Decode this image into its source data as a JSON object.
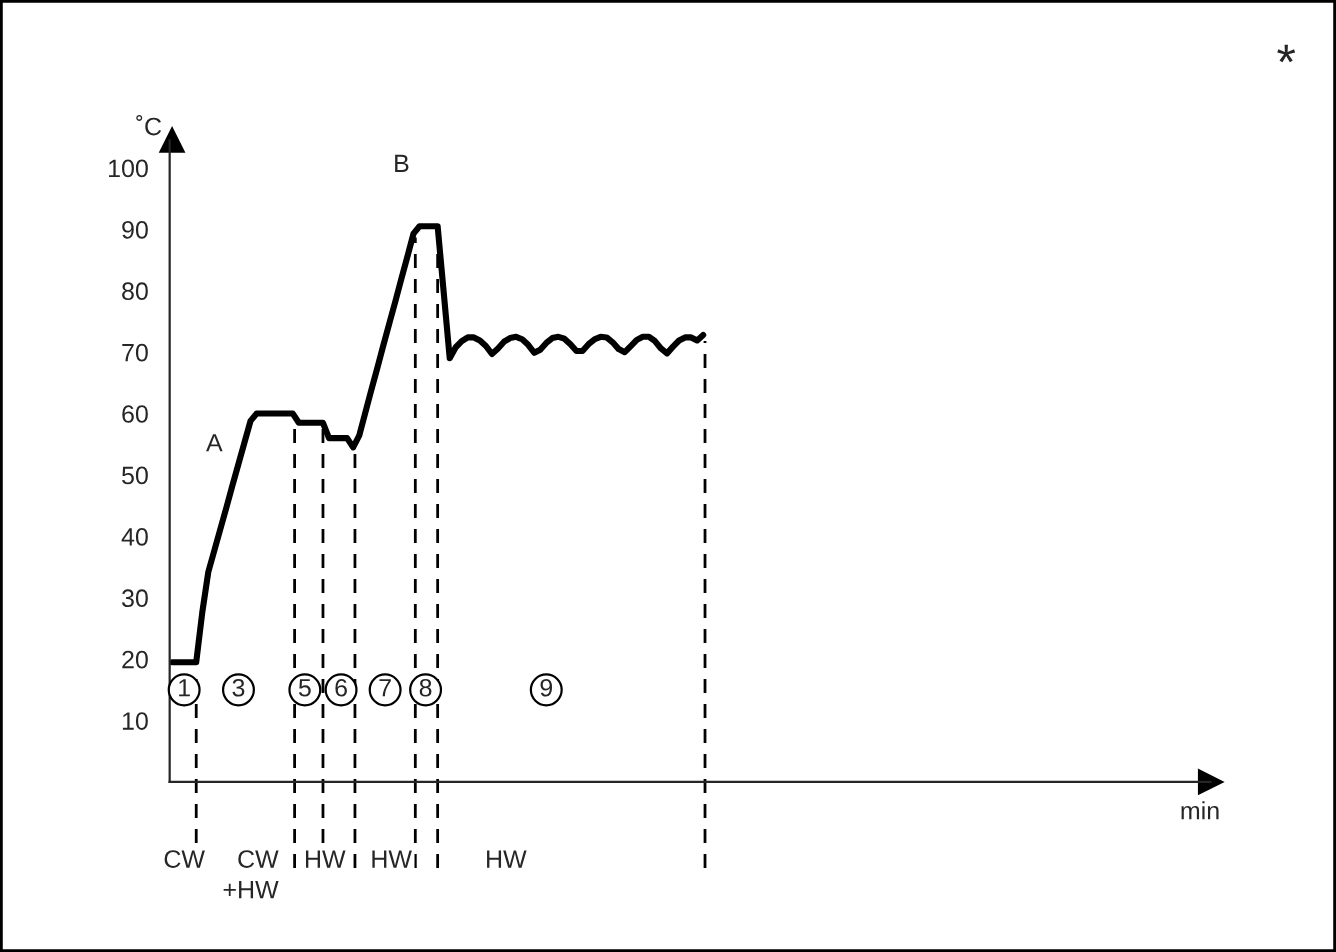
{
  "chart_data": {
    "type": "line",
    "ylabel": "˚C",
    "categories": [
      null,
      null,
      null,
      null,
      null,
      null,
      null,
      null,
      null,
      null,
      null,
      null,
      null,
      null,
      null,
      null,
      null,
      null,
      null,
      null,
      null,
      null,
      null,
      null,
      null,
      null,
      null,
      null,
      null,
      null,
      null,
      null,
      null,
      null,
      null,
      null,
      null,
      null,
      null,
      null,
      null,
      null,
      null,
      null,
      null,
      null,
      null,
      null,
      null,
      null,
      null,
      null,
      null,
      null,
      null,
      null,
      null,
      null,
      null,
      null,
      null,
      null,
      null,
      null,
      null,
      null,
      null,
      null,
      null,
      null,
      null,
      null,
      null,
      null,
      null,
      null,
      null,
      null,
      null,
      null,
      null,
      null,
      null,
      null,
      null,
      null,
      null,
      null,
      null
    ],
    "series": [
      {
        "color": "#000000",
        "values": [
          19.5,
          19.5,
          19.5,
          19.5,
          19.5,
          27.6,
          34.2,
          37.7,
          41.2,
          44.7,
          48.3,
          51.8,
          55.3,
          58.8,
          60,
          60,
          60,
          60,
          60,
          60,
          60,
          58.5,
          58.5,
          58.5,
          58.5,
          58.5,
          56,
          56,
          56,
          56,
          54.5,
          56.4,
          60.1,
          63.8,
          67.4,
          71.1,
          74.7,
          78.3,
          82,
          85.6,
          89.3,
          90.5,
          90.5,
          90.5,
          90.5,
          79.8,
          69,
          70.8,
          71.8,
          72.4,
          72.4,
          71.9,
          71.0,
          69.7,
          70.6,
          71.7,
          72.3,
          72.5,
          72.1,
          71.2,
          69.9,
          70.4,
          71.5,
          72.3,
          72.5,
          72.2,
          71.3,
          70.2,
          70.2,
          71.3,
          72.1,
          72.5,
          72.4,
          71.6,
          70.5,
          70.0,
          71.0,
          72.0,
          72.5,
          72.5,
          71.8,
          70.6,
          69.8,
          70.9,
          71.9,
          72.4,
          72.4,
          71.9,
          72.8
        ]
      }
    ],
    "ylim": [
      0,
      104.5
    ],
    "yticks": [
      10,
      20,
      30,
      40,
      50,
      60,
      70,
      80,
      90,
      100
    ],
    "tick_labels": "y",
    "grid": false,
    "marker": "none",
    "line_style": "solid",
    "annotations": [
      "A",
      "B",
      "1",
      "3",
      "5",
      "6",
      "7",
      "8",
      "9",
      "CW",
      "CW\n+HW",
      "HW",
      "HW",
      "HW",
      "*",
      "min"
    ]
  }
}
